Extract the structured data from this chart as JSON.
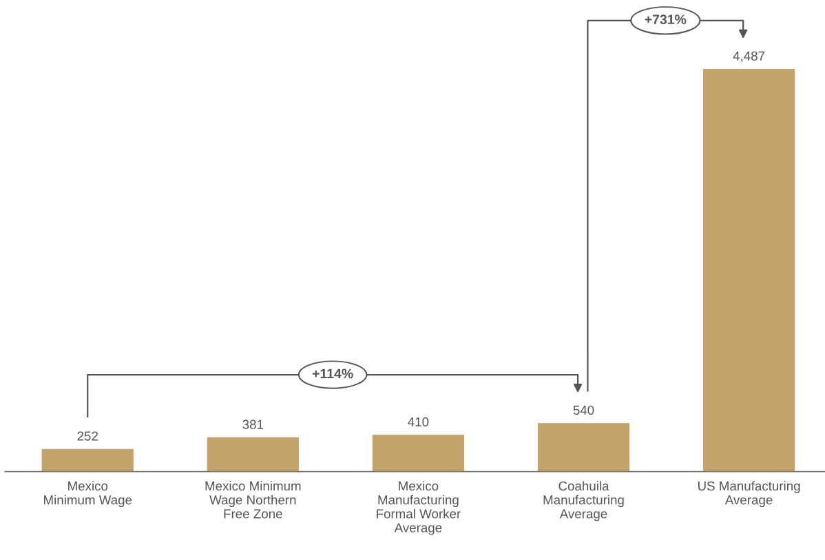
{
  "chart_data": {
    "type": "bar",
    "categories": [
      "Mexico\nMinimum Wage",
      "Mexico Minimum\nWage Northern\nFree Zone",
      "Mexico\nManufacturing\nFormal Worker\nAverage",
      "Coahuila\nManufacturing\nAverage",
      "US Manufacturing\nAverage"
    ],
    "values": [
      252,
      381,
      410,
      540,
      4487
    ],
    "color": "#c4a36b",
    "value_labels": [
      "252",
      "381",
      "410",
      "540",
      "4,487"
    ],
    "grid": false,
    "legend": false,
    "annotations": [
      "+114%",
      "+731%"
    ]
  }
}
